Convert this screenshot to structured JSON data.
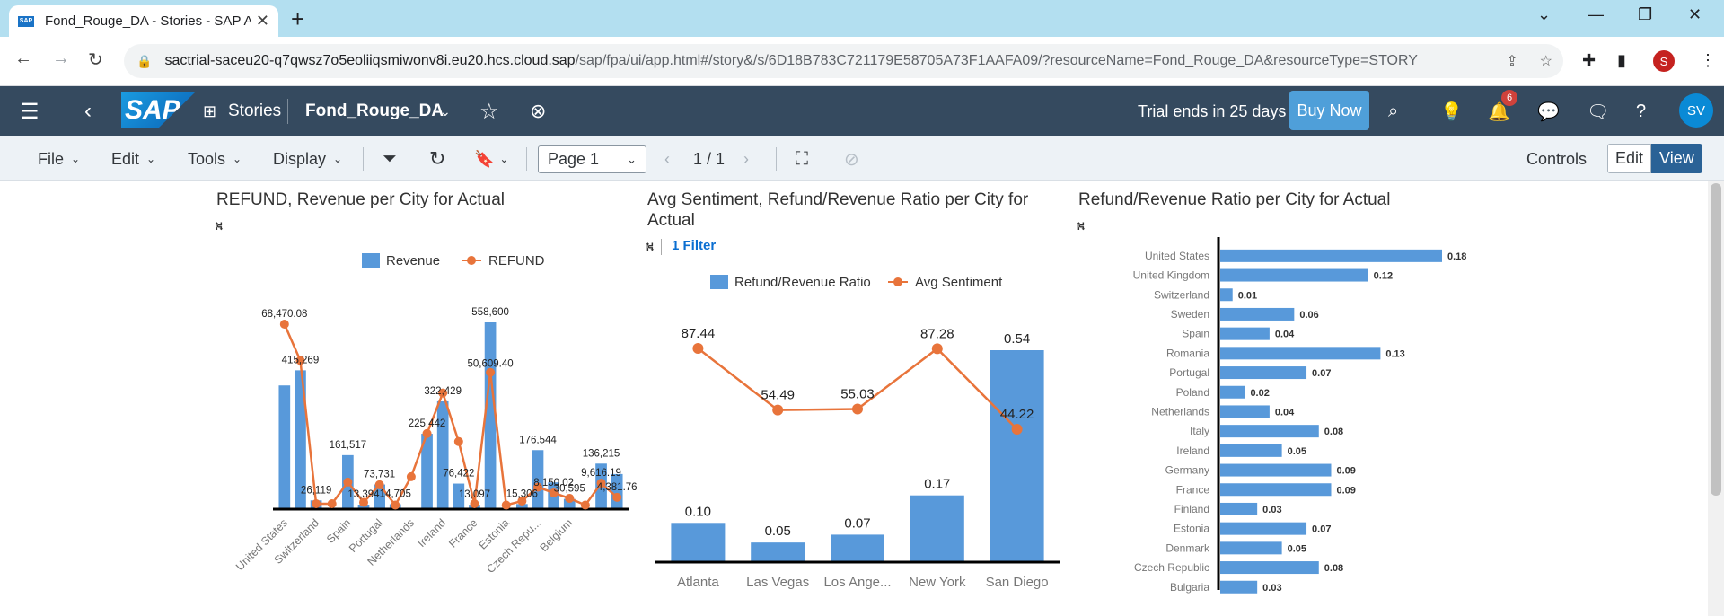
{
  "browser": {
    "tab_title": "Fond_Rouge_DA - Stories - SAP Analytics Cloud",
    "favicon_text": "SAP",
    "url_host": "sactrial-saceu20-q7qwsz7o5eoliiqsmiwonv8i.eu20.hcs.cloud.sap",
    "url_path": "/sap/fpa/ui/app.html#/story&/s/6D18B783C721179E58705A73F1AAFA09/?resourceName=Fond_Rouge_DA&resourceType=STORY",
    "profile_initial": "S"
  },
  "shell": {
    "logo": "SAP",
    "stories_label": "Stories",
    "story_name": "Fond_Rouge_DA",
    "trial_text": "Trial ends in 25 days",
    "buy_now": "Buy Now",
    "notification_count": "6",
    "user_initials": "SV"
  },
  "toolbar": {
    "file": "File",
    "edit": "Edit",
    "tools": "Tools",
    "display": "Display",
    "page_select": "Page 1",
    "page_counter": "1 / 1",
    "controls": "Controls",
    "edit_mode": "Edit",
    "view_mode": "View"
  },
  "chart_data": [
    {
      "type": "bar",
      "title": "REFUND, Revenue per City for Actual",
      "legend": [
        "Revenue",
        "REFUND"
      ],
      "categories": [
        "United States",
        "",
        "Switzerland",
        "",
        "Spain",
        "",
        "Portugal",
        "",
        "",
        "Netherlands",
        "",
        "Ireland",
        "",
        "France",
        "",
        "Estonia",
        "",
        "",
        "Czech Repu...",
        "",
        "Belgium",
        ""
      ],
      "x_tick_labels": [
        "United States",
        "Switzerland",
        "Spain",
        "Portugal",
        "Netherlands",
        "Ireland",
        "France",
        "Estonia",
        "Czech Repu...",
        "Belgium"
      ],
      "series": [
        {
          "name": "Revenue",
          "values": [
            370000,
            415269,
            26119,
            0,
            161517,
            13394,
            73731,
            14705,
            0,
            225442,
            322429,
            76422,
            13097,
            558600,
            0,
            15306,
            176544,
            80000,
            30595,
            0,
            136215,
            105000
          ]
        },
        {
          "name": "REFUND",
          "values": [
            68470.08,
            55000,
            2000,
            2000,
            10000,
            2500,
            9000,
            1500,
            12000,
            28000,
            43000,
            25000,
            2000,
            50609.4,
            1500,
            3000,
            8150.02,
            6000,
            4000,
            1500,
            9616.19,
            4381.76
          ]
        }
      ],
      "value_labels": [
        "68,470.08",
        "415,269",
        "26,119",
        "161,517",
        "13,394",
        "73,731",
        "14,705",
        "225,442",
        "322,429",
        "76,422",
        "13,097",
        "558,600",
        "50,609.40",
        "15,306",
        "176,544",
        "8,150.02",
        "30,595",
        "136,215",
        "9,616.19",
        "4,381.76"
      ],
      "colors": {
        "bar": "#5899da",
        "line": "#e8743b"
      }
    },
    {
      "type": "bar",
      "title": "Avg Sentiment, Refund/Revenue Ratio per City for Actual",
      "filter_label": "1 Filter",
      "legend": [
        "Refund/Revenue Ratio",
        "Avg Sentiment"
      ],
      "categories": [
        "Atlanta",
        "Las Vegas",
        "Los Ange...",
        "New York",
        "San Diego"
      ],
      "series": [
        {
          "name": "Refund/Revenue Ratio",
          "values": [
            0.1,
            0.05,
            0.07,
            0.17,
            0.54
          ]
        },
        {
          "name": "Avg Sentiment",
          "values": [
            87.44,
            54.49,
            55.03,
            87.28,
            44.22
          ]
        }
      ],
      "bar_labels": [
        "0.10",
        "0.05",
        "0.07",
        "0.17",
        "0.54"
      ],
      "line_labels": [
        "87.44",
        "54.49",
        "55.03",
        "87.28",
        "44.22"
      ],
      "colors": {
        "bar": "#5899da",
        "line": "#e8743b"
      }
    },
    {
      "type": "bar",
      "orientation": "horizontal",
      "title": "Refund/Revenue Ratio per City for Actual",
      "categories": [
        "United States",
        "United Kingdom",
        "Switzerland",
        "Sweden",
        "Spain",
        "Romania",
        "Portugal",
        "Poland",
        "Netherlands",
        "Italy",
        "Ireland",
        "Germany",
        "France",
        "Finland",
        "Estonia",
        "Denmark",
        "Czech Republic",
        "Bulgaria"
      ],
      "values": [
        0.18,
        0.12,
        0.01,
        0.06,
        0.04,
        0.13,
        0.07,
        0.02,
        0.04,
        0.08,
        0.05,
        0.09,
        0.09,
        0.03,
        0.07,
        0.05,
        0.08,
        0.03
      ],
      "value_labels": [
        "0.18",
        "0.12",
        "0.01",
        "0.06",
        "0.04",
        "0.13",
        "0.07",
        "0.02",
        "0.04",
        "0.08",
        "0.05",
        "0.09",
        "0.09",
        "0.03",
        "0.07",
        "0.05",
        "0.08",
        "0.03"
      ],
      "colors": {
        "bar": "#5899da"
      }
    }
  ]
}
